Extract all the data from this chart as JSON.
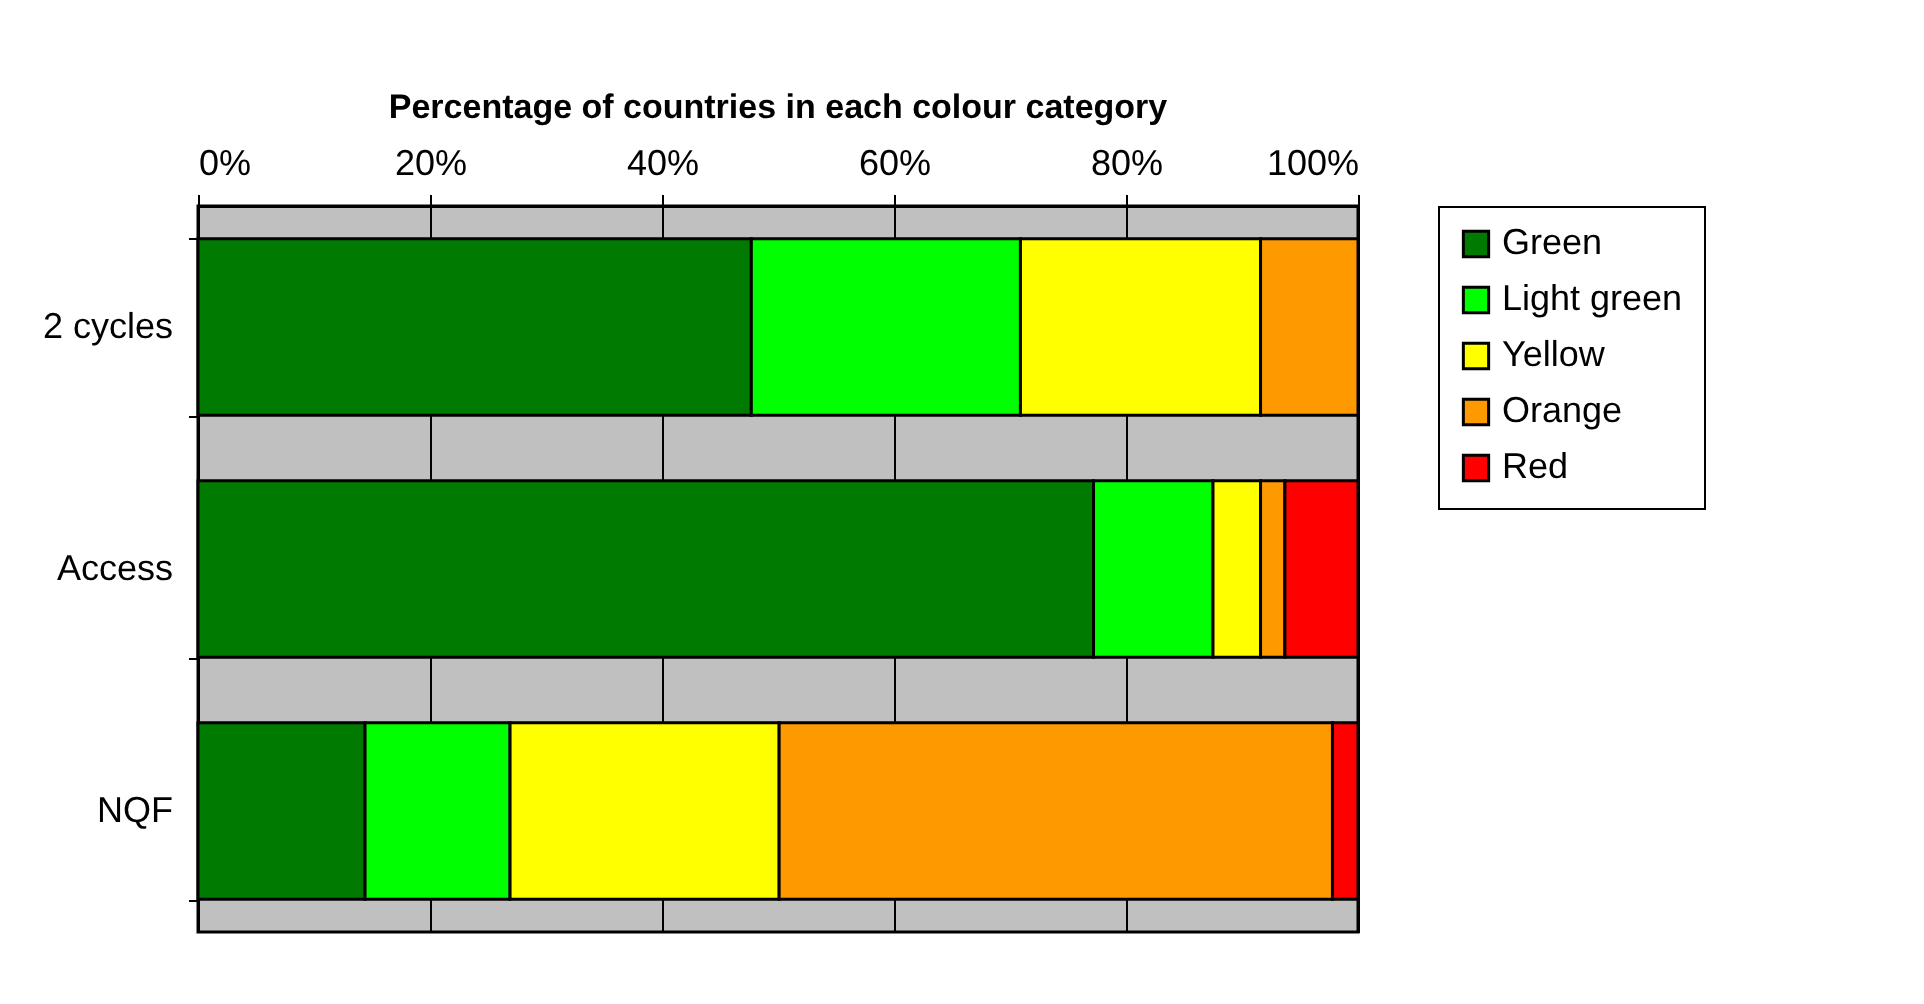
{
  "chart_data": {
    "type": "bar",
    "orientation": "horizontal",
    "stacked": true,
    "title": "Percentage of countries in each colour category",
    "categories": [
      "2 cycles",
      "Access",
      "NQF"
    ],
    "series": [
      {
        "name": "Green",
        "color": "#007a00",
        "values": [
          47.7,
          77.2,
          14.4
        ]
      },
      {
        "name": "Light green",
        "color": "#00ff00",
        "values": [
          23.2,
          10.3,
          12.5
        ]
      },
      {
        "name": "Yellow",
        "color": "#ffff00",
        "values": [
          20.7,
          4.1,
          23.2
        ]
      },
      {
        "name": "Orange",
        "color": "#ff9900",
        "values": [
          8.4,
          2.1,
          47.7
        ]
      },
      {
        "name": "Red",
        "color": "#ff0000",
        "values": [
          null,
          6.3,
          2.2
        ]
      }
    ],
    "xlim": [
      0,
      100
    ],
    "xticks": [
      {
        "value": 0,
        "label": "0%"
      },
      {
        "value": 20,
        "label": "20%"
      },
      {
        "value": 40,
        "label": "40%"
      },
      {
        "value": 60,
        "label": "60%"
      },
      {
        "value": 80,
        "label": "80%"
      },
      {
        "value": 100,
        "label": "100%"
      }
    ],
    "grid": "x",
    "legend": "right"
  }
}
